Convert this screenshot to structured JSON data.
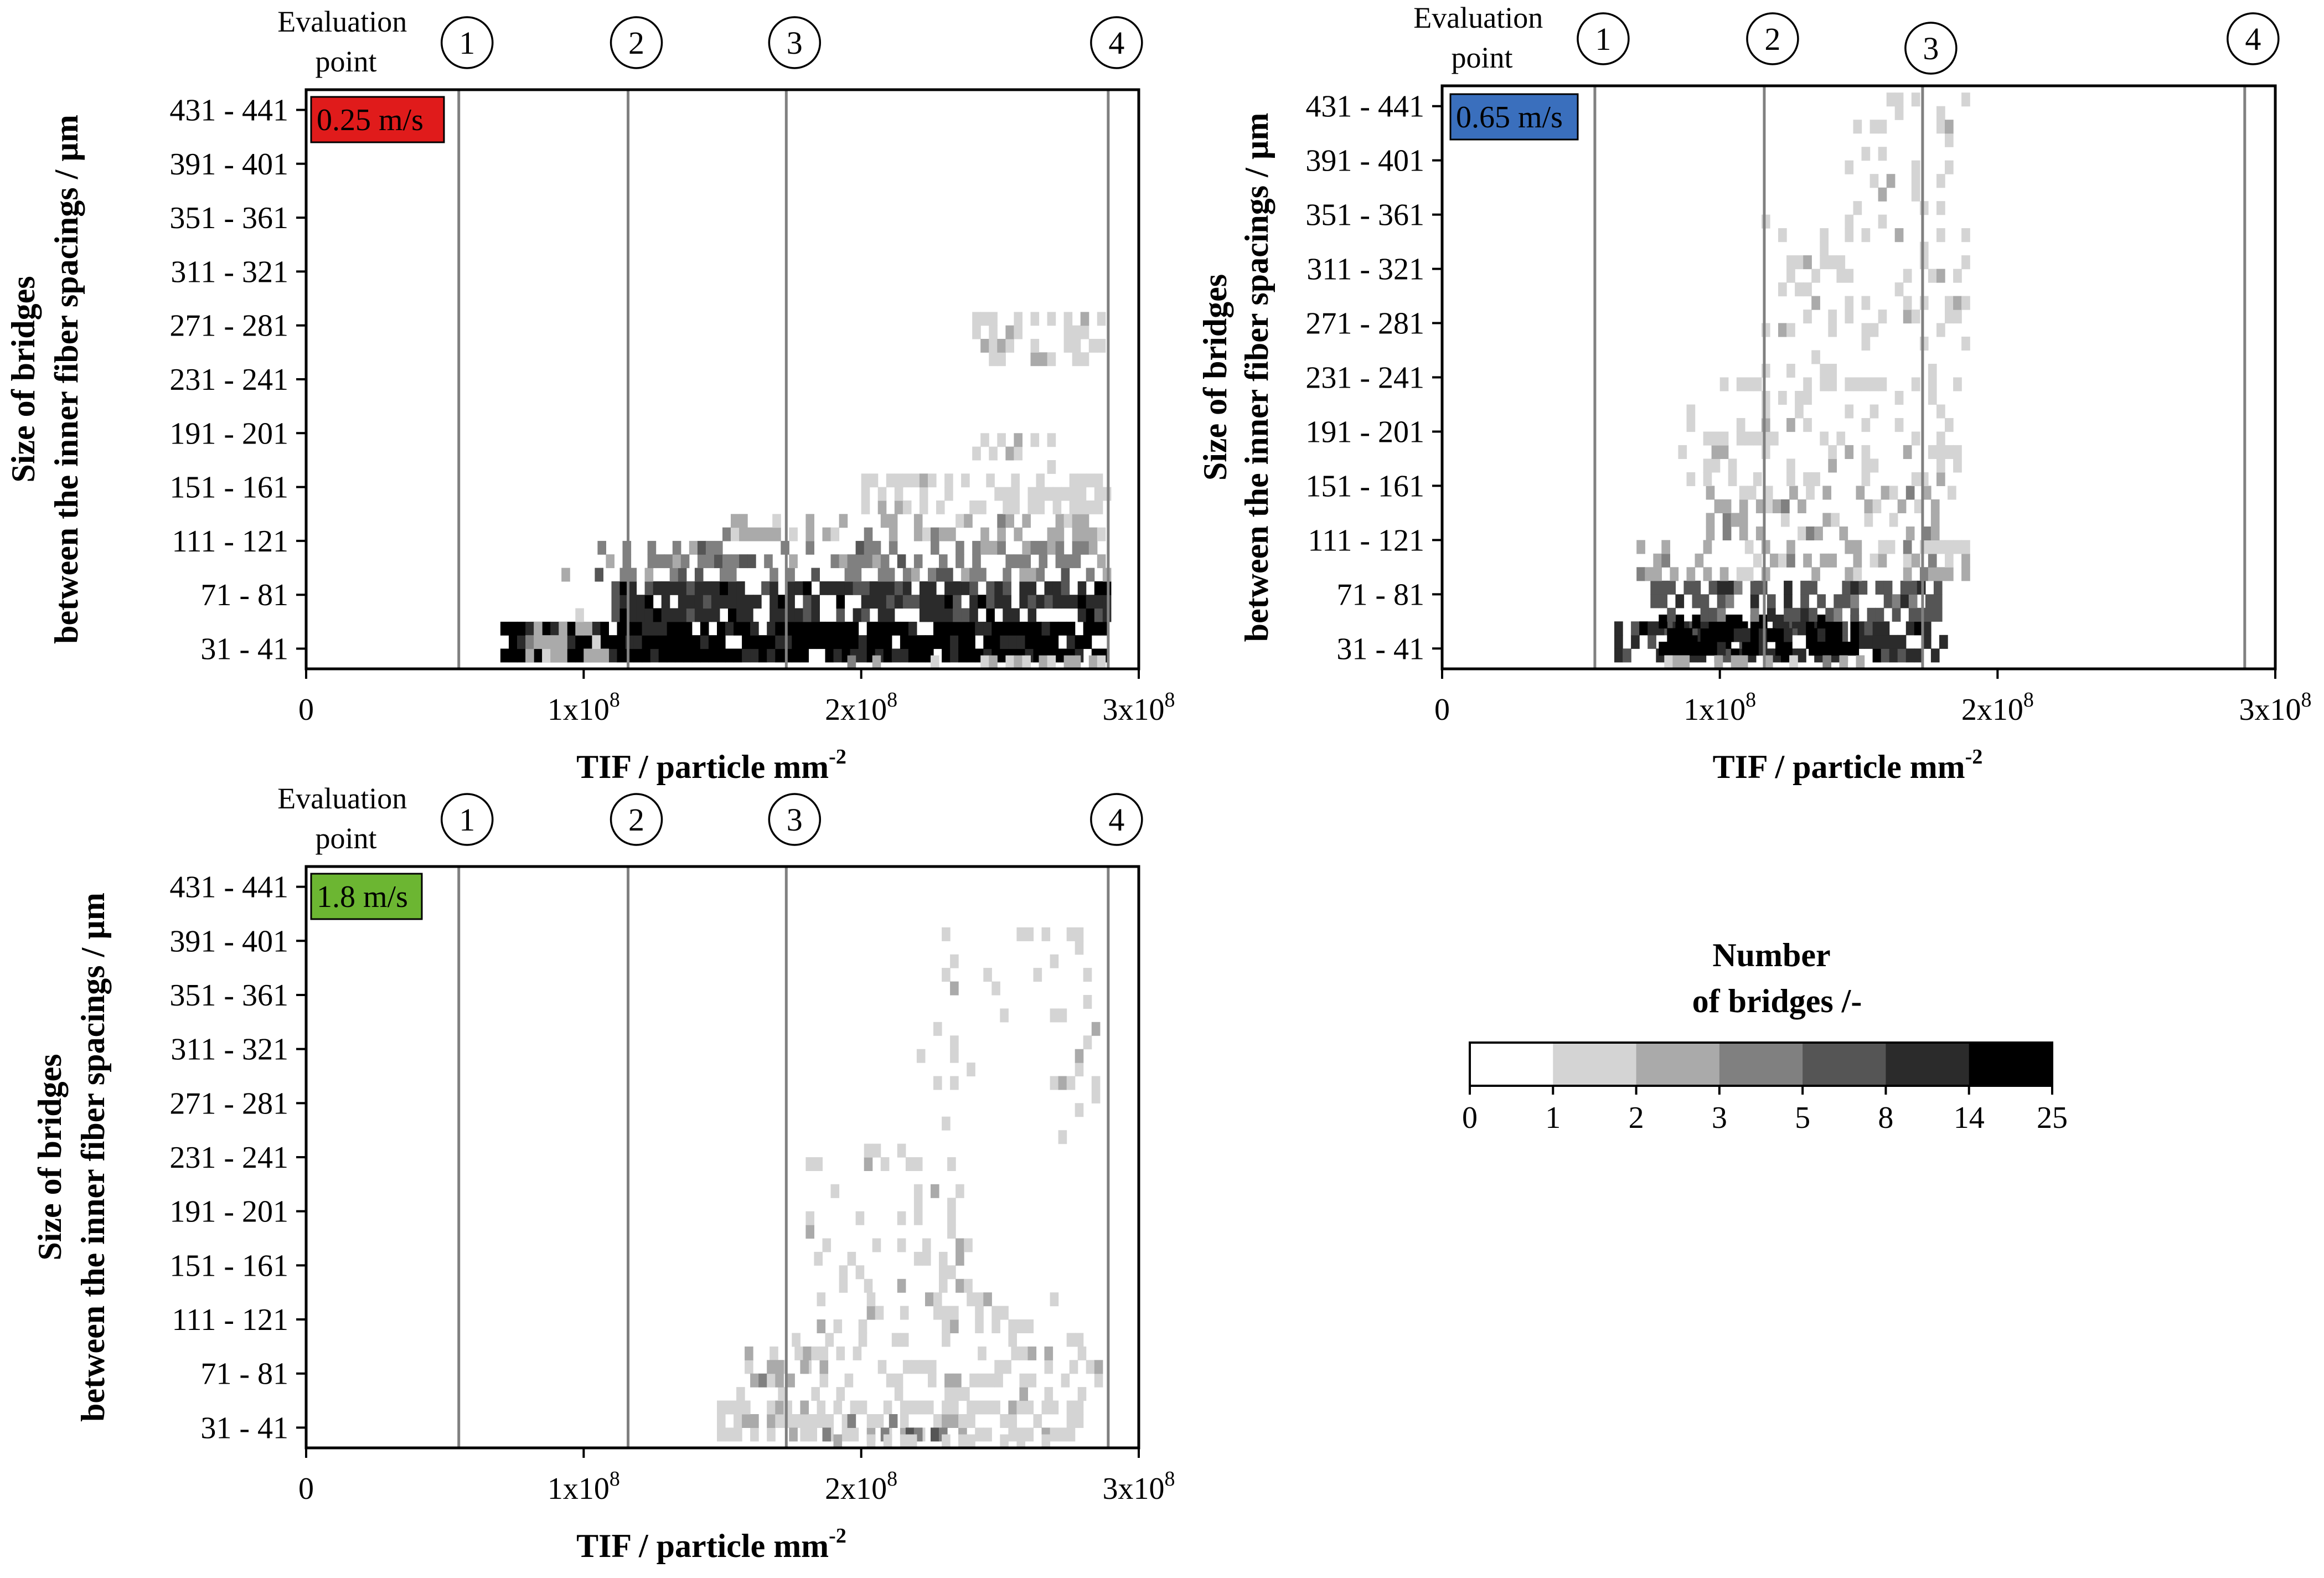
{
  "figure": {
    "evaluation_label": "Evaluation\npoint",
    "colorbar": {
      "title_line1": "Number",
      "title_line2": "of bridges /-",
      "bounds": [
        0,
        1,
        2,
        3,
        5,
        8,
        14,
        25
      ],
      "tick_labels": [
        "0",
        "1",
        "2",
        "3",
        "5",
        "8",
        "14",
        "25"
      ],
      "colors": [
        "#ffffff",
        "#d4d4d4",
        "#aaaaaa",
        "#808080",
        "#555555",
        "#2b2b2b",
        "#000000"
      ]
    }
  },
  "chart_data": [
    {
      "type": "heatmap",
      "panel_label": "0.25 m/s",
      "panel_color": "#e01b1b",
      "xlabel_main": "TIF / particle mm",
      "xlabel_sup": "-2",
      "ylabel_line1": "Size of bridges",
      "ylabel_line2": "between the inner fiber spacings / µm",
      "xlim": [
        0,
        300000000
      ],
      "x_tick_values": [
        0,
        100000000,
        200000000,
        300000000
      ],
      "x_tick_labels": [
        {
          "base": "0",
          "exp": ""
        },
        {
          "base": "1x10",
          "exp": "8"
        },
        {
          "base": "2x10",
          "exp": "8"
        },
        {
          "base": "3x10",
          "exp": "8"
        }
      ],
      "ylim": [
        21,
        451
      ],
      "y_tick_values": [
        36,
        76,
        116,
        156,
        196,
        236,
        276,
        316,
        356,
        396,
        436
      ],
      "y_tick_labels": [
        "31 - 41",
        "71 - 81",
        "111 - 121",
        "151 - 161",
        "191 - 201",
        "231 - 241",
        "271 - 281",
        "311 - 321",
        "351 - 361",
        "391 - 401",
        "431 - 441"
      ],
      "evaluation_points": [
        {
          "label": "1",
          "x": 55000000
        },
        {
          "label": "2",
          "x": 116000000
        },
        {
          "label": "3",
          "x": 173000000
        },
        {
          "label": "4",
          "x": 289000000
        }
      ],
      "bins": {
        "x_step": 3000000,
        "y_step": 10
      },
      "regions": [
        {
          "x": [
            70000000,
            288000000
          ],
          "y": [
            26,
            56
          ],
          "level": 6,
          "p": 0.9
        },
        {
          "x": [
            76000000,
            110000000
          ],
          "y": [
            26,
            66
          ],
          "level": 2,
          "p": 0.5
        },
        {
          "x": [
            110000000,
            288000000
          ],
          "y": [
            56,
            86
          ],
          "level": 5,
          "p": 0.75
        },
        {
          "x": [
            80000000,
            288000000
          ],
          "y": [
            86,
            96
          ],
          "level": 3,
          "p": 0.45
        },
        {
          "x": [
            105000000,
            288000000
          ],
          "y": [
            96,
            116
          ],
          "level": 3,
          "p": 0.55
        },
        {
          "x": [
            150000000,
            288000000
          ],
          "y": [
            116,
            136
          ],
          "level": 2,
          "p": 0.45
        },
        {
          "x": [
            200000000,
            288000000
          ],
          "y": [
            136,
            166
          ],
          "level": 1,
          "p": 0.55
        },
        {
          "x": [
            240000000,
            280000000
          ],
          "y": [
            166,
            196
          ],
          "level": 1,
          "p": 0.3
        },
        {
          "x": [
            240000000,
            288000000
          ],
          "y": [
            246,
            286
          ],
          "level": 1,
          "p": 0.45
        },
        {
          "x": [
            180000000,
            288000000
          ],
          "y": [
            21,
            31
          ],
          "level": 2,
          "p": 0.5
        }
      ]
    },
    {
      "type": "heatmap",
      "panel_label": "0.65 m/s",
      "panel_color": "#3a6fbd",
      "xlabel_main": "TIF / particle mm",
      "xlabel_sup": "-2",
      "ylabel_line1": "Size of bridges",
      "ylabel_line2": "between the inner fiber spacings / µm",
      "xlim": [
        0,
        300000000
      ],
      "x_tick_values": [
        0,
        100000000,
        200000000,
        300000000
      ],
      "x_tick_labels": [
        {
          "base": "0",
          "exp": ""
        },
        {
          "base": "1x10",
          "exp": "8"
        },
        {
          "base": "2x10",
          "exp": "8"
        },
        {
          "base": "3x10",
          "exp": "8"
        }
      ],
      "ylim": [
        21,
        451
      ],
      "y_tick_values": [
        36,
        76,
        116,
        156,
        196,
        236,
        276,
        316,
        356,
        396,
        436
      ],
      "y_tick_labels": [
        "31 - 41",
        "71 - 81",
        "111 - 121",
        "151 - 161",
        "191 - 201",
        "231 - 241",
        "271 - 281",
        "311 - 321",
        "351 - 361",
        "391 - 401",
        "431 - 441"
      ],
      "evaluation_points": [
        {
          "label": "1",
          "x": 55000000
        },
        {
          "label": "2",
          "x": 116000000
        },
        {
          "label": "3",
          "x": 173000000
        },
        {
          "label": "4",
          "x": 289000000
        }
      ],
      "bins": {
        "x_step": 3000000,
        "y_step": 10
      },
      "regions": [
        {
          "x": [
            62000000,
            180000000
          ],
          "y": [
            26,
            56
          ],
          "level": 5,
          "p": 0.7
        },
        {
          "x": [
            78000000,
            150000000
          ],
          "y": [
            31,
            61
          ],
          "level": 6,
          "p": 0.85
        },
        {
          "x": [
            75000000,
            180000000
          ],
          "y": [
            56,
            86
          ],
          "level": 4,
          "p": 0.65
        },
        {
          "x": [
            70000000,
            190000000
          ],
          "y": [
            86,
            116
          ],
          "level": 2,
          "p": 0.45
        },
        {
          "x": [
            95000000,
            185000000
          ],
          "y": [
            116,
            156
          ],
          "level": 2,
          "p": 0.35
        },
        {
          "x": [
            85000000,
            185000000
          ],
          "y": [
            156,
            236
          ],
          "level": 1,
          "p": 0.28
        },
        {
          "x": [
            115000000,
            190000000
          ],
          "y": [
            236,
            356
          ],
          "level": 1,
          "p": 0.2
        },
        {
          "x": [
            145000000,
            190000000
          ],
          "y": [
            356,
            441
          ],
          "level": 1,
          "p": 0.15
        },
        {
          "x": [
            80000000,
            160000000
          ],
          "y": [
            21,
            31
          ],
          "level": 2,
          "p": 0.45
        }
      ]
    },
    {
      "type": "heatmap",
      "panel_label": "1.8 m/s",
      "panel_color": "#6cb632",
      "xlabel_main": "TIF / particle mm",
      "xlabel_sup": "-2",
      "ylabel_line1": "Size of bridges",
      "ylabel_line2": "between the inner fiber spacings / µm",
      "xlim": [
        0,
        300000000
      ],
      "x_tick_values": [
        0,
        100000000,
        200000000,
        300000000
      ],
      "x_tick_labels": [
        {
          "base": "0",
          "exp": ""
        },
        {
          "base": "1x10",
          "exp": "8"
        },
        {
          "base": "2x10",
          "exp": "8"
        },
        {
          "base": "3x10",
          "exp": "8"
        }
      ],
      "ylim": [
        21,
        451
      ],
      "y_tick_values": [
        36,
        76,
        116,
        156,
        196,
        236,
        276,
        316,
        356,
        396,
        436
      ],
      "y_tick_labels": [
        "31 - 41",
        "71 - 81",
        "111 - 121",
        "151 - 161",
        "191 - 201",
        "231 - 241",
        "271 - 281",
        "311 - 321",
        "351 - 361",
        "391 - 401",
        "431 - 441"
      ],
      "evaluation_points": [
        {
          "label": "1",
          "x": 55000000
        },
        {
          "label": "2",
          "x": 116000000
        },
        {
          "label": "3",
          "x": 173000000
        },
        {
          "label": "4",
          "x": 289000000
        }
      ],
      "bins": {
        "x_step": 3000000,
        "y_step": 10
      },
      "regions": [
        {
          "x": [
            148000000,
            280000000
          ],
          "y": [
            26,
            56
          ],
          "level": 1,
          "p": 0.55
        },
        {
          "x": [
            168000000,
            230000000
          ],
          "y": [
            26,
            46
          ],
          "level": 3,
          "p": 0.3
        },
        {
          "x": [
            155000000,
            285000000
          ],
          "y": [
            56,
            96
          ],
          "level": 1,
          "p": 0.32
        },
        {
          "x": [
            160000000,
            180000000
          ],
          "y": [
            66,
            86
          ],
          "level": 2,
          "p": 0.4
        },
        {
          "x": [
            175000000,
            280000000
          ],
          "y": [
            96,
            136
          ],
          "level": 1,
          "p": 0.25
        },
        {
          "x": [
            180000000,
            240000000
          ],
          "y": [
            136,
            246
          ],
          "level": 1,
          "p": 0.15
        },
        {
          "x": [
            220000000,
            285000000
          ],
          "y": [
            246,
            406
          ],
          "level": 1,
          "p": 0.1
        },
        {
          "x": [
            175000000,
            270000000
          ],
          "y": [
            21,
            31
          ],
          "level": 1,
          "p": 0.35
        }
      ]
    }
  ]
}
